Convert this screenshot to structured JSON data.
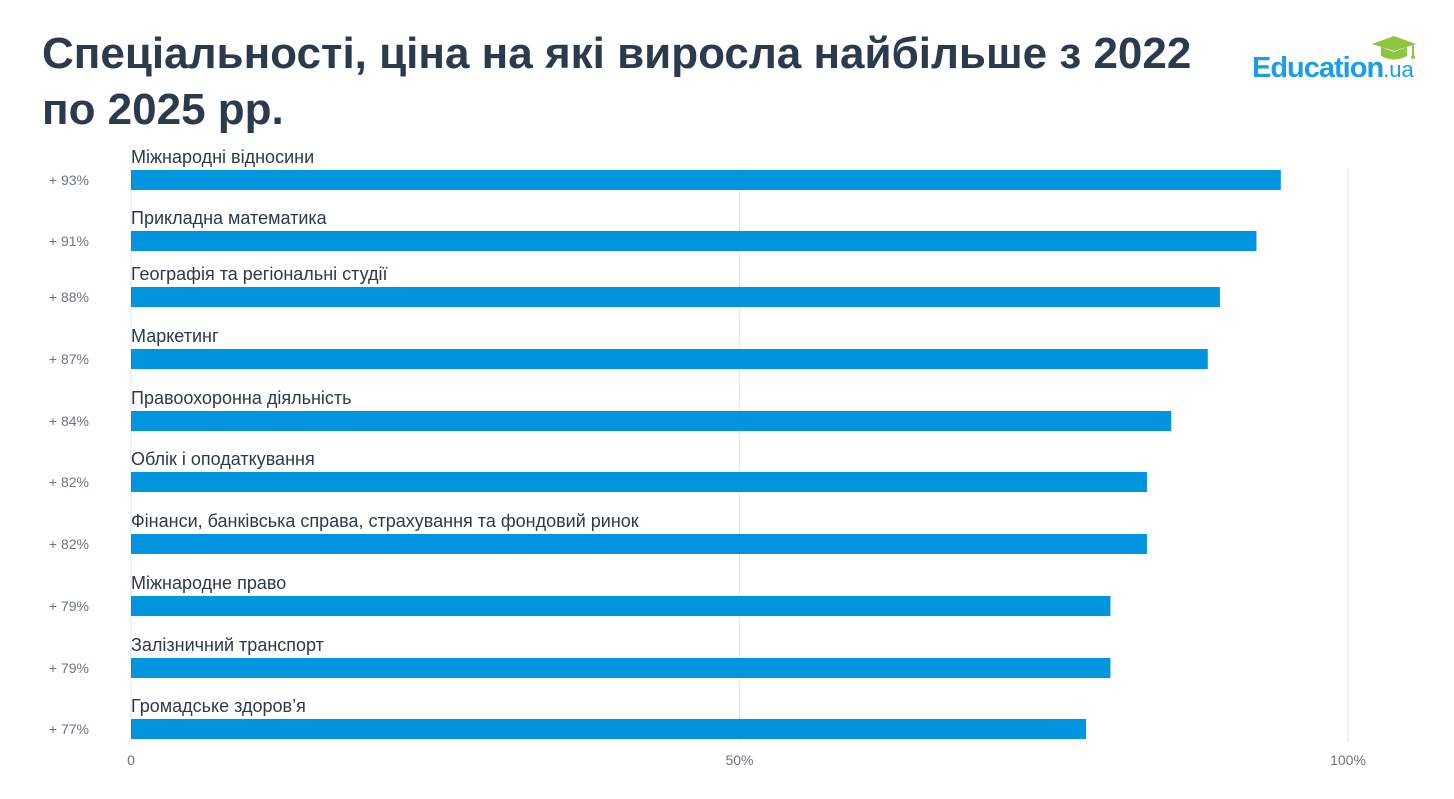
{
  "chart_data": {
    "type": "bar",
    "orientation": "horizontal",
    "title": "Спеціальності, ціна на які виросла найбільше з 2022 по 2025 рр.",
    "categories": [
      "Міжнародні відносини",
      "Прикладна математика",
      "Географія та регіональні студії",
      "Маркетинг",
      "Правоохоронна діяльність",
      "Облік і оподаткування",
      "Фінанси, банківська справа, страхування та фондовий ринок",
      "Міжнародне право",
      "Залізничний транспорт",
      "Громадське здоров’я"
    ],
    "values": [
      93,
      91,
      88,
      87,
      84,
      82,
      82,
      79,
      79,
      77
    ],
    "value_labels": [
      "+ 93%",
      "+ 91%",
      "+ 88%",
      "+ 87%",
      "+ 84%",
      "+ 82%",
      "+ 82%",
      "+ 79%",
      "+ 79%",
      "+ 77%"
    ],
    "xlim": [
      0,
      100
    ],
    "xticks": [
      0,
      50,
      100
    ],
    "xtick_labels": [
      "0",
      "50%",
      "100%"
    ],
    "grid": true,
    "bar_color": "#0095de"
  },
  "logo": {
    "text": "Education",
    "suffix": ".ua",
    "colors": {
      "text": "#1b9ee6",
      "cap": "#8cc63f"
    }
  }
}
